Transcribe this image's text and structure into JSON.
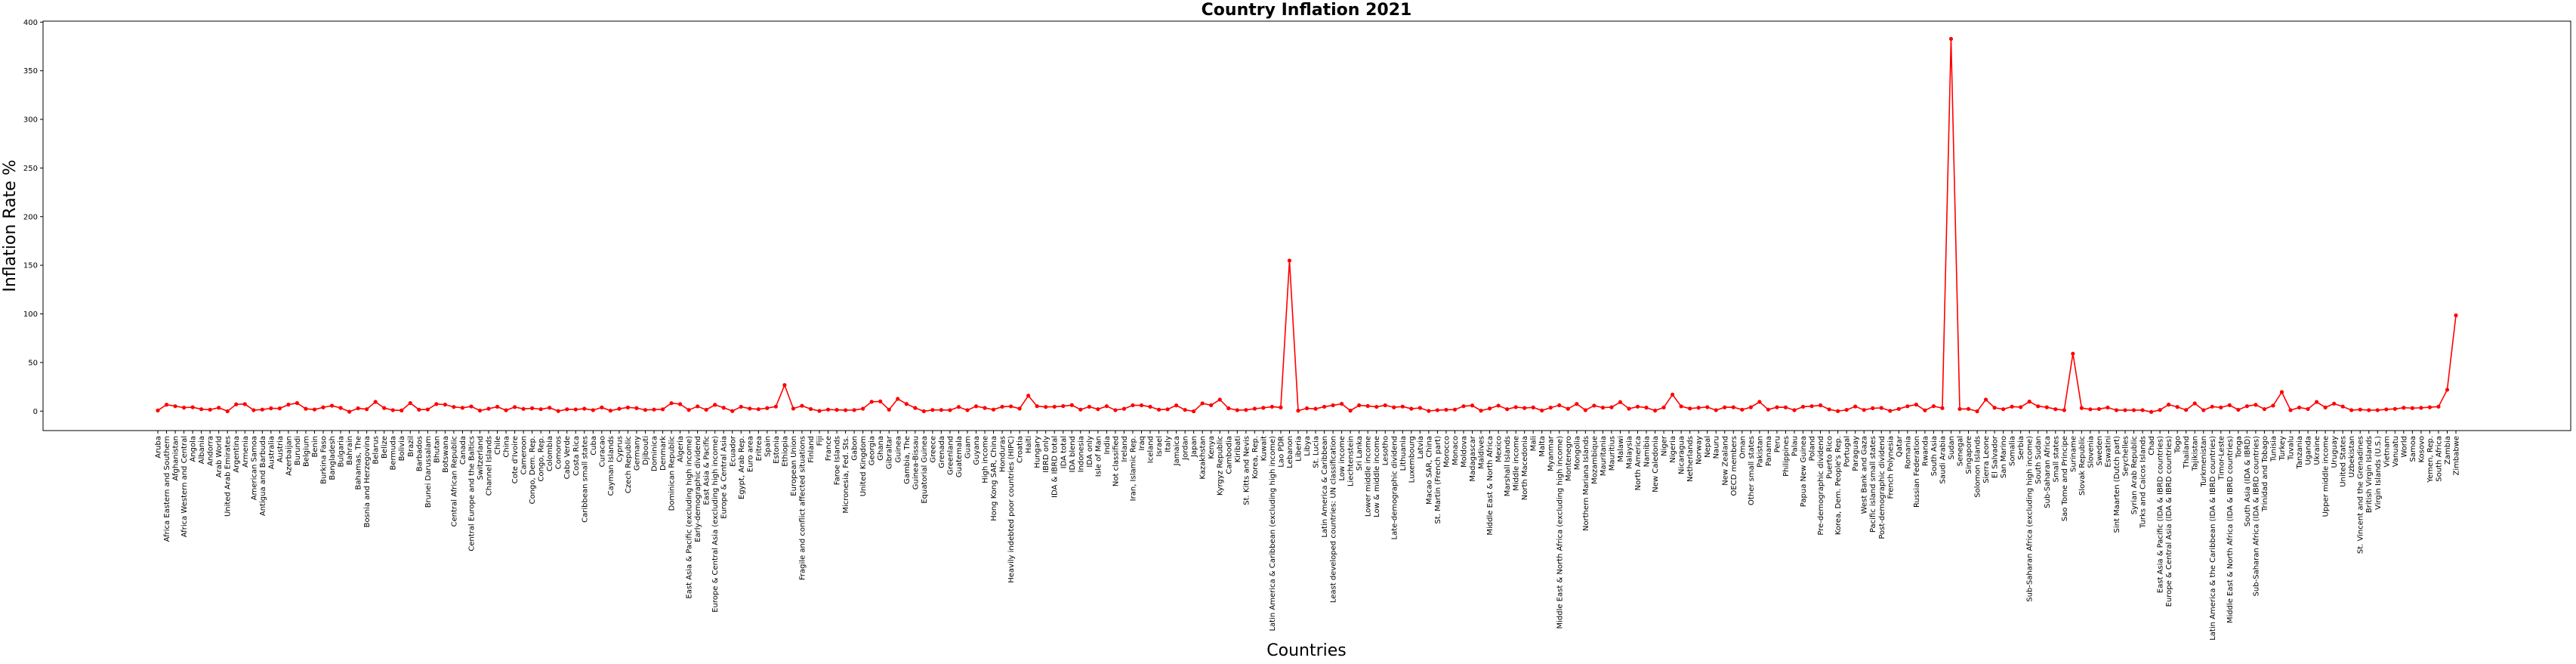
{
  "chart_data": {
    "type": "line",
    "title": "Country Inflation 2021",
    "xlabel": "Countries",
    "ylabel": "Inflation Rate %",
    "categories": [
      "Aruba",
      "Africa Eastern and Southern",
      "Afghanistan",
      "Africa Western and Central",
      "Angola",
      "Albania",
      "Andorra",
      "Arab World",
      "United Arab Emirates",
      "Argentina",
      "Armenia",
      "American Samoa",
      "Antigua and Barbuda",
      "Australia",
      "Austria",
      "Azerbaijan",
      "Burundi",
      "Belgium",
      "Benin",
      "Burkina Faso",
      "Bangladesh",
      "Bulgaria",
      "Bahrain",
      "Bahamas, The",
      "Bosnia and Herzegovina",
      "Belarus",
      "Belize",
      "Bermuda",
      "Bolivia",
      "Brazil",
      "Barbados",
      "Brunei Darussalam",
      "Bhutan",
      "Botswana",
      "Central African Republic",
      "Canada",
      "Central Europe and the Baltics",
      "Switzerland",
      "Channel Islands",
      "Chile",
      "China",
      "Cote d'Ivoire",
      "Cameroon",
      "Congo, Dem. Rep.",
      "Congo, Rep.",
      "Colombia",
      "Comoros",
      "Cabo Verde",
      "Costa Rica",
      "Caribbean small states",
      "Cuba",
      "Curacao",
      "Cayman Islands",
      "Cyprus",
      "Czech Republic",
      "Germany",
      "Djibouti",
      "Dominica",
      "Denmark",
      "Dominican Republic",
      "Algeria",
      "East Asia & Pacific (excluding high income)",
      "Early-demographic dividend",
      "East Asia & Pacific",
      "Europe & Central Asia (excluding high income)",
      "Europe & Central Asia",
      "Ecuador",
      "Egypt, Arab Rep.",
      "Euro area",
      "Eritrea",
      "Spain",
      "Estonia",
      "Ethiopia",
      "European Union",
      "Fragile and conflict affected situations",
      "Finland",
      "Fiji",
      "France",
      "Faroe Islands",
      "Micronesia, Fed. Sts.",
      "Gabon",
      "United Kingdom",
      "Georgia",
      "Ghana",
      "Gibraltar",
      "Guinea",
      "Gambia, The",
      "Guinea-Bissau",
      "Equatorial Guinea",
      "Greece",
      "Grenada",
      "Greenland",
      "Guatemala",
      "Guam",
      "Guyana",
      "High income",
      "Hong Kong SAR, China",
      "Honduras",
      "Heavily indebted poor countries (HIPC)",
      "Croatia",
      "Haiti",
      "Hungary",
      "IBRD only",
      "IDA & IBRD total",
      "IDA total",
      "IDA blend",
      "Indonesia",
      "IDA only",
      "Isle of Man",
      "India",
      "Not classified",
      "Ireland",
      "Iran, Islamic Rep.",
      "Iraq",
      "Iceland",
      "Israel",
      "Italy",
      "Jamaica",
      "Jordan",
      "Japan",
      "Kazakhstan",
      "Kenya",
      "Kyrgyz Republic",
      "Cambodia",
      "Kiribati",
      "St. Kitts and Nevis",
      "Korea, Rep.",
      "Kuwait",
      "Latin America & Caribbean (excluding high income)",
      "Lao PDR",
      "Lebanon",
      "Liberia",
      "Libya",
      "St. Lucia",
      "Latin America & Caribbean",
      "Least developed countries: UN classification",
      "Low income",
      "Liechtenstein",
      "Sri Lanka",
      "Lower middle income",
      "Low & middle income",
      "Lesotho",
      "Late-demographic dividend",
      "Lithuania",
      "Luxembourg",
      "Latvia",
      "Macao SAR, China",
      "St. Martin (French part)",
      "Morocco",
      "Monaco",
      "Moldova",
      "Madagascar",
      "Maldives",
      "Middle East & North Africa",
      "Mexico",
      "Marshall Islands",
      "Middle income",
      "North Macedonia",
      "Mali",
      "Malta",
      "Myanmar",
      "Middle East & North Africa (excluding high income)",
      "Montenegro",
      "Mongolia",
      "Northern Mariana Islands",
      "Mozambique",
      "Mauritania",
      "Mauritius",
      "Malawi",
      "Malaysia",
      "North America",
      "Namibia",
      "New Caledonia",
      "Niger",
      "Nigeria",
      "Nicaragua",
      "Netherlands",
      "Norway",
      "Nepal",
      "Nauru",
      "New Zealand",
      "OECD members",
      "Oman",
      "Other small states",
      "Pakistan",
      "Panama",
      "Peru",
      "Philippines",
      "Palau",
      "Papua New Guinea",
      "Poland",
      "Pre-demographic dividend",
      "Puerto Rico",
      "Korea, Dem. People's Rep.",
      "Portugal",
      "Paraguay",
      "West Bank and Gaza",
      "Pacific island small states",
      "Post-demographic dividend",
      "French Polynesia",
      "Qatar",
      "Romania",
      "Russian Federation",
      "Rwanda",
      "South Asia",
      "Saudi Arabia",
      "Sudan",
      "Senegal",
      "Singapore",
      "Solomon Islands",
      "Sierra Leone",
      "El Salvador",
      "San Marino",
      "Somalia",
      "Serbia",
      "Sub-Saharan Africa (excluding high income)",
      "South Sudan",
      "Sub-Saharan Africa",
      "Small states",
      "Sao Tome and Principe",
      "Suriname",
      "Slovak Republic",
      "Slovenia",
      "Sweden",
      "Eswatini",
      "Sint Maarten (Dutch part)",
      "Seychelles",
      "Syrian Arab Republic",
      "Turks and Caicos Islands",
      "Chad",
      "East Asia & Pacific (IDA & IBRD countries)",
      "Europe & Central Asia (IDA & IBRD countries)",
      "Togo",
      "Thailand",
      "Tajikistan",
      "Turkmenistan",
      "Latin America & the Caribbean (IDA & IBRD countries)",
      "Timor-Leste",
      "Middle East & North Africa (IDA & IBRD countries)",
      "Tonga",
      "South Asia (IDA & IBRD)",
      "Sub-Saharan Africa (IDA & IBRD countries)",
      "Trinidad and Tobago",
      "Tunisia",
      "Turkey",
      "Tuvalu",
      "Tanzania",
      "Uganda",
      "Ukraine",
      "Upper middle income",
      "Uruguay",
      "United States",
      "Uzbekistan",
      "St. Vincent and the Grenadines",
      "British Virgin Islands",
      "Virgin Islands (U.S.)",
      "Vietnam",
      "Vanuatu",
      "World",
      "Samoa",
      "Kosovo",
      "Yemen, Rep.",
      "South Africa",
      "Zambia",
      "Zimbabwe"
    ],
    "series": [
      {
        "name": "Inflation Rate %",
        "color": "#ff0000",
        "values": [
          0.7,
          6.6,
          5.1,
          3.6,
          4,
          2.0,
          1.5,
          3.5,
          -0.1,
          7,
          7.2,
          1,
          1.6,
          2.9,
          2.8,
          6.7,
          8.3,
          2.4,
          1.7,
          3.9,
          5.6,
          3.3,
          -0.6,
          2.9,
          2.0,
          9.5,
          3.2,
          1.0,
          0.7,
          8.3,
          1.5,
          1.7,
          7.3,
          6.7,
          4.3,
          3.4,
          4.8,
          0.6,
          2.5,
          4.5,
          0.9,
          4.2,
          2.3,
          3,
          2.0,
          3.5,
          0.1,
          1.9,
          1.7,
          2.5,
          1,
          3.8,
          0.5,
          2.4,
          3.8,
          3.1,
          1.2,
          1.6,
          1.9,
          8.2,
          7.2,
          1.2,
          4.9,
          1.4,
          6.5,
          3.5,
          0.1,
          4.5,
          2.6,
          2,
          3.1,
          4.7,
          26.8,
          2.6,
          5.5,
          2.2,
          0.2,
          1.6,
          1.3,
          1.0,
          1.1,
          2.5,
          9.6,
          10.0,
          1.5,
          12.6,
          7.4,
          3.3,
          -0.1,
          1.2,
          1.2,
          1.0,
          4.3,
          1,
          5.0,
          3.3,
          1.6,
          4.5,
          4.9,
          2.6,
          15.9,
          5.1,
          4.3,
          4.5,
          5.2,
          6.2,
          1.6,
          4.5,
          2,
          5.1,
          1,
          2.4,
          6,
          6.0,
          4.5,
          1.5,
          1.9,
          5.9,
          1.3,
          -0.2,
          8.0,
          6.1,
          11.9,
          2.9,
          1,
          1.2,
          2.5,
          3.4,
          4.5,
          3.8,
          154.8,
          0.5,
          2.9,
          2.4,
          4.5,
          6,
          7.5,
          0.5,
          6.0,
          5.3,
          4.4,
          6.0,
          3.9,
          4.7,
          2.5,
          3.3,
          0.2,
          1,
          1.4,
          1.6,
          5.1,
          5.8,
          0.5,
          2.7,
          5.7,
          2,
          4.1,
          3.2,
          3.8,
          0.7,
          3.6,
          6,
          2.4,
          7.4,
          1,
          5.7,
          3.6,
          4.0,
          9.3,
          2.5,
          4.6,
          3.6,
          0.6,
          3.8,
          17.0,
          4.9,
          2.7,
          3.5,
          4.1,
          1,
          3.9,
          4.0,
          1.5,
          4,
          9.5,
          1.6,
          4.0,
          3.9,
          1,
          4.5,
          5.1,
          6,
          1.8,
          0,
          1.3,
          4.8,
          1.2,
          3,
          3.3,
          0.3,
          2.3,
          5.0,
          6.7,
          0.8,
          5.1,
          3.1,
          382.8,
          2.2,
          2.3,
          -0.2,
          11.9,
          3.5,
          2,
          4.6,
          4.1,
          9.8,
          5,
          4,
          2,
          1,
          59.1,
          3.2,
          1.9,
          2.2,
          3.7,
          1,
          1,
          1,
          1,
          -0.8,
          1.2,
          6.7,
          4.3,
          1.2,
          8.0,
          1,
          4.6,
          3.8,
          6.1,
          1.4,
          5.1,
          6.5,
          2.1,
          5.7,
          19.6,
          1,
          3.7,
          2.2,
          9.4,
          3.8,
          7.7,
          4.7,
          1,
          1.6,
          1,
          1,
          1.8,
          2.3,
          3.5,
          3.1,
          3.4,
          4,
          4.6,
          22.0,
          98.5
        ]
      }
    ],
    "ylim": [
      -20,
      401
    ],
    "yticks": [
      0,
      50,
      100,
      150,
      200,
      250,
      300,
      350,
      400
    ],
    "grid": false,
    "markers": true
  }
}
